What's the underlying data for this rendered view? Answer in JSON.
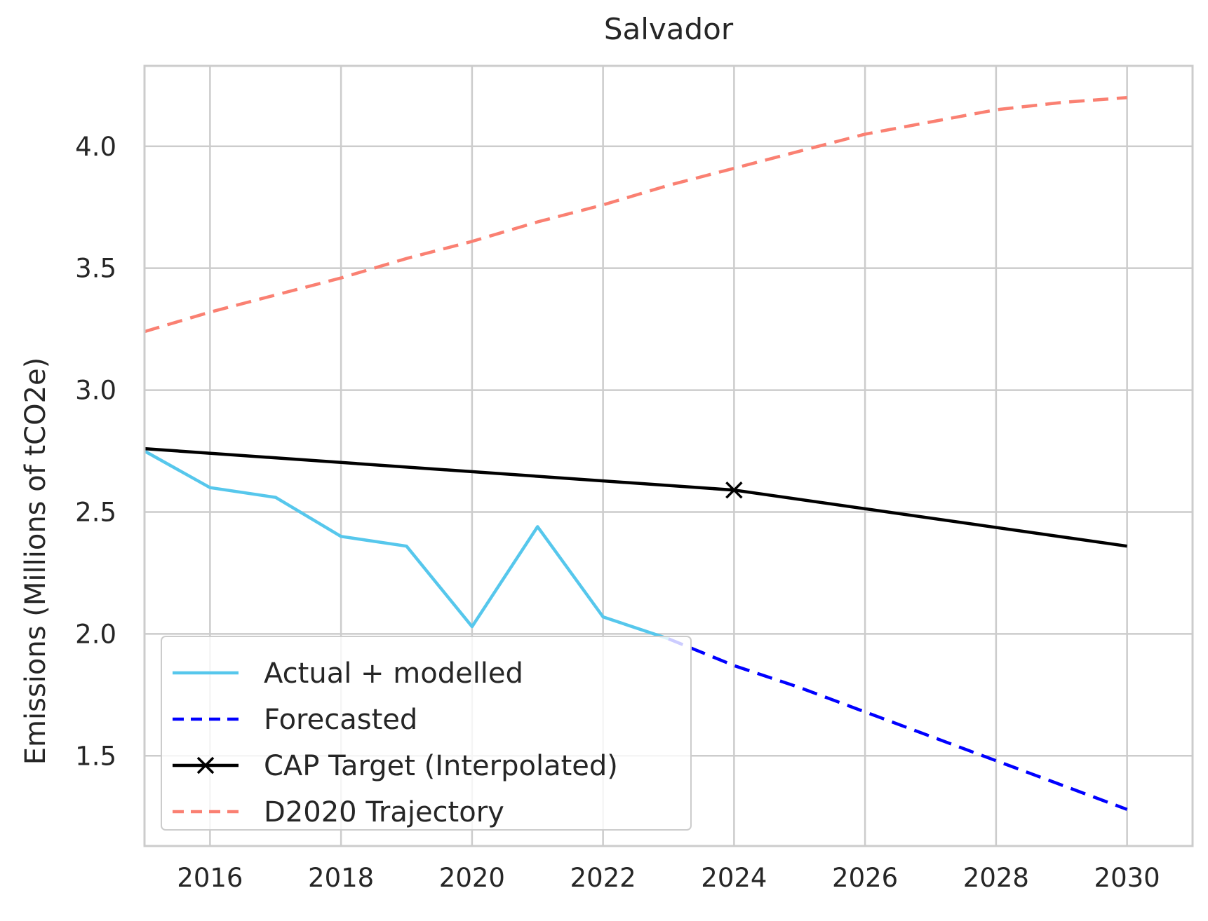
{
  "chart_data": {
    "type": "line",
    "title": "Salvador",
    "xlabel": "",
    "ylabel": "Emissions (Millions of tCO2e)",
    "xlim": [
      2015,
      2031
    ],
    "ylim": [
      1.13,
      4.33
    ],
    "x_ticks": [
      2016,
      2018,
      2020,
      2022,
      2024,
      2026,
      2028,
      2030
    ],
    "y_ticks": [
      1.5,
      2.0,
      2.5,
      3.0,
      3.5,
      4.0
    ],
    "y_tick_labels": [
      "1.5",
      "2.0",
      "2.5",
      "3.0",
      "3.5",
      "4.0"
    ],
    "grid": true,
    "legend_position": "lower-left",
    "series": [
      {
        "name": "Actual + modelled",
        "color": "#56C7EC",
        "style": "solid",
        "marker": "none",
        "x": [
          2015,
          2016,
          2017,
          2018,
          2019,
          2020,
          2021,
          2022,
          2023
        ],
        "y": [
          2.75,
          2.6,
          2.56,
          2.4,
          2.36,
          2.03,
          2.44,
          2.07,
          1.98
        ]
      },
      {
        "name": "Forecasted",
        "color": "#0000FF",
        "style": "dashed",
        "marker": "none",
        "x": [
          2023,
          2024,
          2025,
          2026,
          2027,
          2028,
          2029,
          2030
        ],
        "y": [
          1.98,
          1.87,
          1.78,
          1.68,
          1.58,
          1.48,
          1.38,
          1.28
        ]
      },
      {
        "name": "CAP Target (Interpolated)",
        "color": "#000000",
        "style": "solid",
        "marker": "x",
        "marker_at": [
          2024
        ],
        "x": [
          2015,
          2024,
          2030
        ],
        "y": [
          2.76,
          2.59,
          2.36
        ]
      },
      {
        "name": "D2020 Trajectory",
        "color": "#FA8072",
        "style": "dashed",
        "marker": "none",
        "x": [
          2015,
          2016,
          2017,
          2018,
          2019,
          2020,
          2021,
          2022,
          2023,
          2024,
          2025,
          2026,
          2027,
          2028,
          2029,
          2030
        ],
        "y": [
          3.24,
          3.32,
          3.39,
          3.46,
          3.54,
          3.61,
          3.69,
          3.76,
          3.84,
          3.91,
          3.98,
          4.05,
          4.1,
          4.15,
          4.18,
          4.2
        ]
      }
    ]
  }
}
